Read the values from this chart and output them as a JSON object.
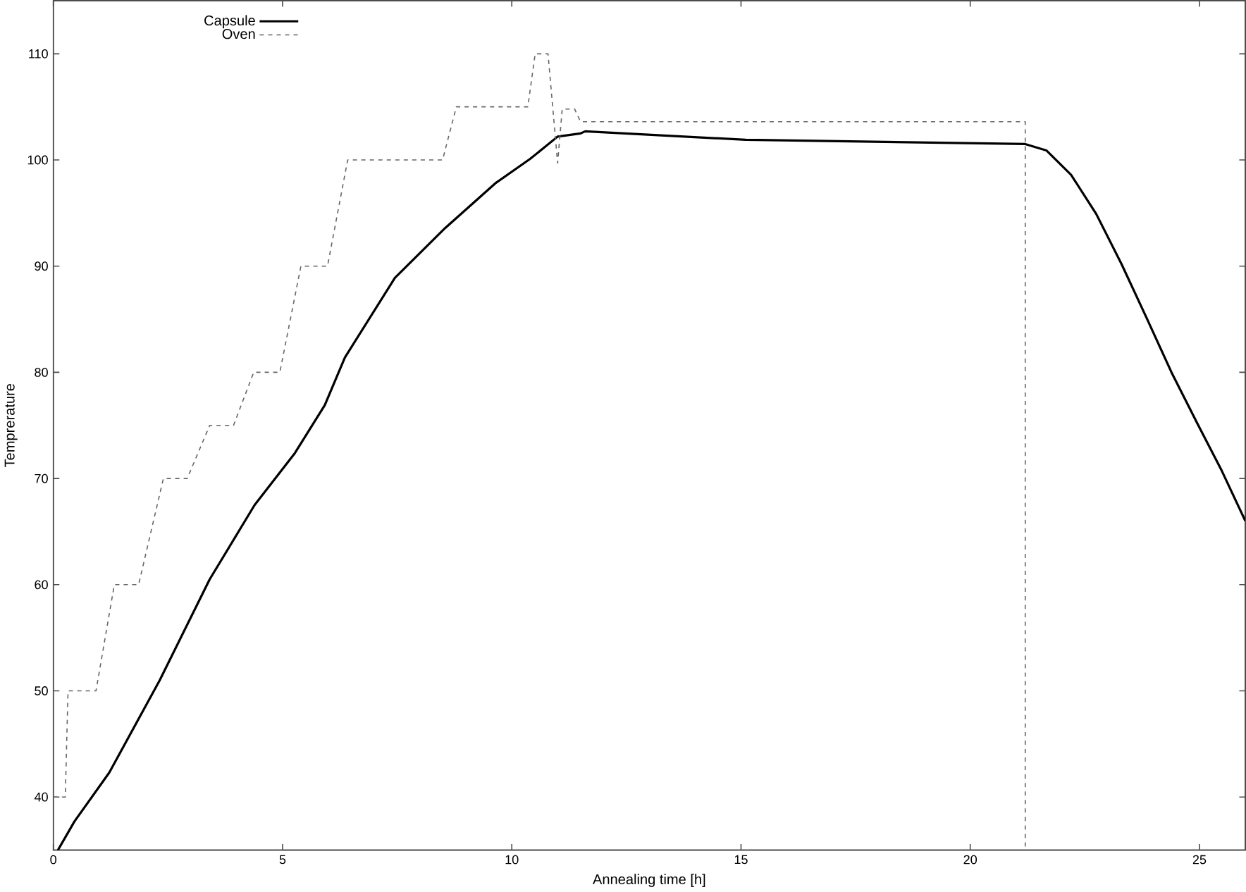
{
  "chart_data": {
    "type": "line",
    "xlabel": "Annealing time [h]",
    "ylabel": "Temprerature",
    "xlim": [
      0,
      26
    ],
    "ylim": [
      35,
      115
    ],
    "xticks": [
      0,
      5,
      10,
      15,
      20,
      25
    ],
    "yticks": [
      40,
      50,
      60,
      70,
      80,
      90,
      100,
      110
    ],
    "grid": false,
    "legend": "top left",
    "marker": "none",
    "series": [
      {
        "name": "Capsule",
        "color": "#000000",
        "line_style": "solid",
        "x": [
          0.1,
          0.46,
          1.22,
          2.32,
          3.41,
          4.39,
          5.27,
          5.92,
          6.36,
          7.45,
          8.55,
          9.64,
          10.4,
          11.0,
          11.5,
          11.6,
          15.1,
          21.2,
          21.66,
          22.2,
          22.75,
          23.3,
          23.85,
          24.39,
          24.94,
          25.49,
          26
        ],
        "values": [
          35,
          37.7,
          42.3,
          51,
          60.5,
          67.5,
          72.4,
          76.9,
          81.4,
          88.9,
          93.6,
          97.8,
          100.1,
          102.2,
          102.5,
          102.7,
          101.9,
          101.5,
          100.9,
          98.6,
          94.9,
          90.2,
          85.1,
          80,
          75.3,
          70.7,
          66
        ]
      },
      {
        "name": "Oven",
        "color": "#666666",
        "line_style": "dashed",
        "x": [
          0,
          0.26,
          0.32,
          0.93,
          1.33,
          1.86,
          2.4,
          2.92,
          3.41,
          3.93,
          4.37,
          4.94,
          5.4,
          5.98,
          6.42,
          8.49,
          8.79,
          10.35,
          10.51,
          10.79,
          11.0,
          11.1,
          11.37,
          11.5,
          21.2,
          21.2
        ],
        "values": [
          40,
          40,
          50,
          50,
          60,
          60,
          70,
          70,
          75,
          75,
          80,
          80,
          90,
          90,
          100,
          100,
          105,
          105,
          110,
          110,
          99.7,
          104.8,
          104.8,
          103.6,
          103.6,
          35
        ]
      }
    ]
  }
}
